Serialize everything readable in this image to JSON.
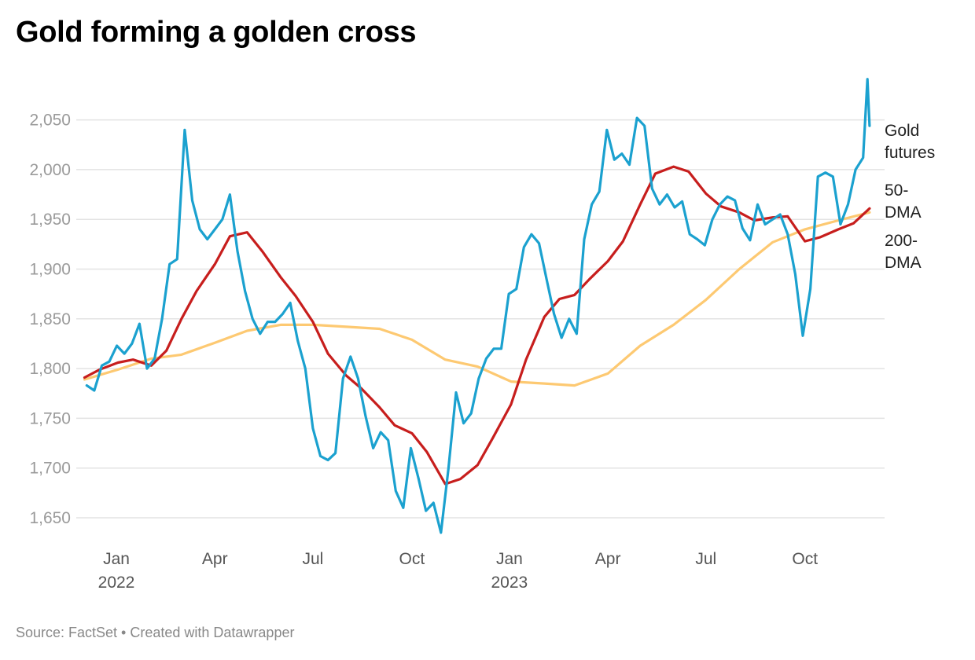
{
  "title": "Gold forming a golden cross",
  "source": "Source: FactSet • Created with Datawrapper",
  "chart_data": {
    "type": "line",
    "title": "Gold forming a golden cross",
    "xlabel": "",
    "ylabel": "",
    "ylim": [
      1630,
      2095
    ],
    "xlim": [
      "2021-11-25",
      "2023-12-12"
    ],
    "grid": true,
    "legend": "right, direct labels at line ends",
    "y_ticks": [
      {
        "value": 1650,
        "label": "1,650"
      },
      {
        "value": 1700,
        "label": "1,700"
      },
      {
        "value": 1750,
        "label": "1,750"
      },
      {
        "value": 1800,
        "label": "1,800"
      },
      {
        "value": 1850,
        "label": "1,850"
      },
      {
        "value": 1900,
        "label": "1,900"
      },
      {
        "value": 1950,
        "label": "1,950"
      },
      {
        "value": 2000,
        "label": "2,000"
      },
      {
        "value": 2050,
        "label": "2,050"
      }
    ],
    "x_ticks": [
      {
        "date": "2022-01-01",
        "label": "Jan",
        "sublabel": "2022"
      },
      {
        "date": "2022-04-01",
        "label": "Apr",
        "sublabel": ""
      },
      {
        "date": "2022-07-01",
        "label": "Jul",
        "sublabel": ""
      },
      {
        "date": "2022-10-01",
        "label": "Oct",
        "sublabel": ""
      },
      {
        "date": "2023-01-01",
        "label": "Jan",
        "sublabel": "2023"
      },
      {
        "date": "2023-04-01",
        "label": "Apr",
        "sublabel": ""
      },
      {
        "date": "2023-07-01",
        "label": "Jul",
        "sublabel": ""
      },
      {
        "date": "2023-10-01",
        "label": "Oct",
        "sublabel": ""
      }
    ],
    "series": [
      {
        "name": "200-DMA",
        "label_lines": [
          "200-",
          "DMA"
        ],
        "color": "#fdc972",
        "points": [
          [
            "2021-12-01",
            1789
          ],
          [
            "2022-01-01",
            1799
          ],
          [
            "2022-02-01",
            1810
          ],
          [
            "2022-03-01",
            1814
          ],
          [
            "2022-04-01",
            1826
          ],
          [
            "2022-05-01",
            1838
          ],
          [
            "2022-06-01",
            1844
          ],
          [
            "2022-07-01",
            1844
          ],
          [
            "2022-08-01",
            1842
          ],
          [
            "2022-09-01",
            1840
          ],
          [
            "2022-10-01",
            1829
          ],
          [
            "2022-11-01",
            1809
          ],
          [
            "2022-12-01",
            1802
          ],
          [
            "2023-01-01",
            1787
          ],
          [
            "2023-02-01",
            1785
          ],
          [
            "2023-03-01",
            1783
          ],
          [
            "2023-04-01",
            1795
          ],
          [
            "2023-05-01",
            1823
          ],
          [
            "2023-06-01",
            1844
          ],
          [
            "2023-07-01",
            1869
          ],
          [
            "2023-08-01",
            1900
          ],
          [
            "2023-09-01",
            1927
          ],
          [
            "2023-10-01",
            1940
          ],
          [
            "2023-11-01",
            1949
          ],
          [
            "2023-11-30",
            1957
          ]
        ]
      },
      {
        "name": "50-DMA",
        "label_lines": [
          "50-",
          "DMA"
        ],
        "color": "#c71e1d",
        "points": [
          [
            "2021-12-01",
            1791
          ],
          [
            "2021-12-15",
            1799
          ],
          [
            "2022-01-01",
            1806
          ],
          [
            "2022-01-15",
            1809
          ],
          [
            "2022-02-01",
            1803
          ],
          [
            "2022-02-15",
            1818
          ],
          [
            "2022-03-01",
            1850
          ],
          [
            "2022-03-15",
            1878
          ],
          [
            "2022-04-01",
            1905
          ],
          [
            "2022-04-15",
            1933
          ],
          [
            "2022-05-01",
            1937
          ],
          [
            "2022-05-15",
            1918
          ],
          [
            "2022-06-01",
            1892
          ],
          [
            "2022-06-15",
            1873
          ],
          [
            "2022-07-01",
            1847
          ],
          [
            "2022-07-15",
            1815
          ],
          [
            "2022-08-01",
            1793
          ],
          [
            "2022-08-15",
            1780
          ],
          [
            "2022-09-01",
            1761
          ],
          [
            "2022-09-15",
            1743
          ],
          [
            "2022-10-01",
            1735
          ],
          [
            "2022-10-15",
            1716
          ],
          [
            "2022-11-01",
            1684
          ],
          [
            "2022-11-15",
            1689
          ],
          [
            "2022-12-01",
            1703
          ],
          [
            "2022-12-15",
            1730
          ],
          [
            "2023-01-01",
            1764
          ],
          [
            "2023-01-15",
            1809
          ],
          [
            "2023-02-01",
            1852
          ],
          [
            "2023-02-15",
            1870
          ],
          [
            "2023-03-01",
            1874
          ],
          [
            "2023-03-15",
            1890
          ],
          [
            "2023-04-01",
            1908
          ],
          [
            "2023-04-15",
            1928
          ],
          [
            "2023-05-01",
            1965
          ],
          [
            "2023-05-15",
            1996
          ],
          [
            "2023-06-01",
            2003
          ],
          [
            "2023-06-15",
            1998
          ],
          [
            "2023-07-01",
            1976
          ],
          [
            "2023-07-15",
            1963
          ],
          [
            "2023-08-01",
            1957
          ],
          [
            "2023-08-15",
            1949
          ],
          [
            "2023-09-01",
            1952
          ],
          [
            "2023-09-15",
            1953
          ],
          [
            "2023-10-01",
            1928
          ],
          [
            "2023-10-15",
            1932
          ],
          [
            "2023-11-01",
            1940
          ],
          [
            "2023-11-15",
            1946
          ],
          [
            "2023-11-30",
            1961
          ]
        ]
      },
      {
        "name": "Gold futures",
        "label_lines": [
          "Gold",
          "futures"
        ],
        "color": "#1ba1cf",
        "points": [
          [
            "2021-12-03",
            1783
          ],
          [
            "2021-12-10",
            1778
          ],
          [
            "2021-12-17",
            1803
          ],
          [
            "2021-12-24",
            1807
          ],
          [
            "2021-12-31",
            1823
          ],
          [
            "2022-01-07",
            1815
          ],
          [
            "2022-01-14",
            1825
          ],
          [
            "2022-01-21",
            1845
          ],
          [
            "2022-01-28",
            1800
          ],
          [
            "2022-02-04",
            1810
          ],
          [
            "2022-02-11",
            1850
          ],
          [
            "2022-02-18",
            1905
          ],
          [
            "2022-02-25",
            1910
          ],
          [
            "2022-03-04",
            2040
          ],
          [
            "2022-03-11",
            1969
          ],
          [
            "2022-03-18",
            1940
          ],
          [
            "2022-03-25",
            1930
          ],
          [
            "2022-04-01",
            1940
          ],
          [
            "2022-04-08",
            1950
          ],
          [
            "2022-04-15",
            1975
          ],
          [
            "2022-04-22",
            1918
          ],
          [
            "2022-04-29",
            1878
          ],
          [
            "2022-05-06",
            1850
          ],
          [
            "2022-05-13",
            1835
          ],
          [
            "2022-05-20",
            1847
          ],
          [
            "2022-05-27",
            1847
          ],
          [
            "2022-06-03",
            1855
          ],
          [
            "2022-06-10",
            1866
          ],
          [
            "2022-06-17",
            1828
          ],
          [
            "2022-06-24",
            1800
          ],
          [
            "2022-07-01",
            1740
          ],
          [
            "2022-07-08",
            1712
          ],
          [
            "2022-07-15",
            1708
          ],
          [
            "2022-07-22",
            1715
          ],
          [
            "2022-07-29",
            1790
          ],
          [
            "2022-08-05",
            1812
          ],
          [
            "2022-08-12",
            1790
          ],
          [
            "2022-08-19",
            1752
          ],
          [
            "2022-08-26",
            1720
          ],
          [
            "2022-09-02",
            1736
          ],
          [
            "2022-09-09",
            1728
          ],
          [
            "2022-09-16",
            1677
          ],
          [
            "2022-09-23",
            1660
          ],
          [
            "2022-09-30",
            1720
          ],
          [
            "2022-10-07",
            1690
          ],
          [
            "2022-10-14",
            1657
          ],
          [
            "2022-10-21",
            1665
          ],
          [
            "2022-10-28",
            1635
          ],
          [
            "2022-11-04",
            1700
          ],
          [
            "2022-11-11",
            1776
          ],
          [
            "2022-11-18",
            1745
          ],
          [
            "2022-11-25",
            1755
          ],
          [
            "2022-12-02",
            1790
          ],
          [
            "2022-12-09",
            1810
          ],
          [
            "2022-12-16",
            1820
          ],
          [
            "2022-12-23",
            1820
          ],
          [
            "2022-12-30",
            1875
          ],
          [
            "2023-01-06",
            1880
          ],
          [
            "2023-01-13",
            1922
          ],
          [
            "2023-01-20",
            1935
          ],
          [
            "2023-01-27",
            1926
          ],
          [
            "2023-02-03",
            1890
          ],
          [
            "2023-02-10",
            1855
          ],
          [
            "2023-02-17",
            1831
          ],
          [
            "2023-02-24",
            1850
          ],
          [
            "2023-03-03",
            1835
          ],
          [
            "2023-03-10",
            1930
          ],
          [
            "2023-03-17",
            1965
          ],
          [
            "2023-03-24",
            1978
          ],
          [
            "2023-03-31",
            2040
          ],
          [
            "2023-04-07",
            2010
          ],
          [
            "2023-04-14",
            2016
          ],
          [
            "2023-04-21",
            2005
          ],
          [
            "2023-04-28",
            2052
          ],
          [
            "2023-05-05",
            2044
          ],
          [
            "2023-05-12",
            1981
          ],
          [
            "2023-05-19",
            1965
          ],
          [
            "2023-05-26",
            1975
          ],
          [
            "2023-06-02",
            1962
          ],
          [
            "2023-06-09",
            1968
          ],
          [
            "2023-06-16",
            1935
          ],
          [
            "2023-06-23",
            1930
          ],
          [
            "2023-06-30",
            1924
          ],
          [
            "2023-07-07",
            1950
          ],
          [
            "2023-07-14",
            1965
          ],
          [
            "2023-07-21",
            1973
          ],
          [
            "2023-07-28",
            1969
          ],
          [
            "2023-08-04",
            1941
          ],
          [
            "2023-08-11",
            1929
          ],
          [
            "2023-08-18",
            1965
          ],
          [
            "2023-08-25",
            1945
          ],
          [
            "2023-09-01",
            1950
          ],
          [
            "2023-09-08",
            1955
          ],
          [
            "2023-09-15",
            1935
          ],
          [
            "2023-09-22",
            1895
          ],
          [
            "2023-09-29",
            1833
          ],
          [
            "2023-10-06",
            1880
          ],
          [
            "2023-10-13",
            1993
          ],
          [
            "2023-10-20",
            1997
          ],
          [
            "2023-10-27",
            1993
          ],
          [
            "2023-11-03",
            1945
          ],
          [
            "2023-11-10",
            1965
          ],
          [
            "2023-11-17",
            2000
          ],
          [
            "2023-11-24",
            2012
          ],
          [
            "2023-11-28",
            2091
          ],
          [
            "2023-11-29",
            2068
          ],
          [
            "2023-11-30",
            2044
          ]
        ]
      }
    ]
  }
}
